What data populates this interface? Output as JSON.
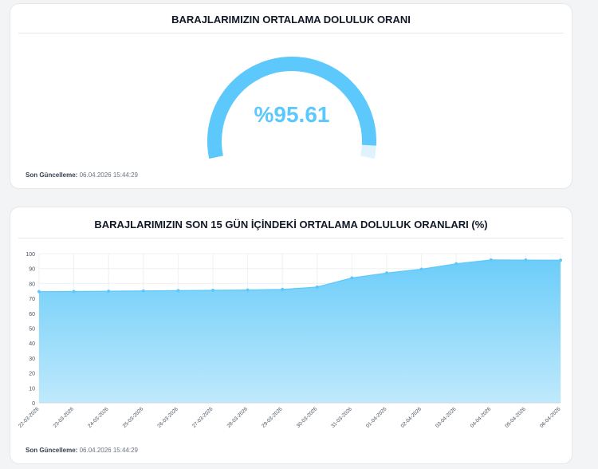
{
  "gauge_card": {
    "title": "BARAJLARIMIZIN ORTALAMA DOLULUK ORANI",
    "value_text": "%95.61",
    "value": 95.61,
    "updated_label": "Son Güncelleme:",
    "updated_value": "06.04.2026 15:44:29"
  },
  "trend_card": {
    "title": "BARAJLARIMIZIN SON 15 GÜN İÇİNDEKİ ORTALAMA DOLULUK ORANLARI (%)",
    "updated_label": "Son Güncelleme:",
    "updated_value": "06.04.2026 15:44:29"
  },
  "colors": {
    "accent": "#5cc8fb",
    "gauge_track": "#e0f2fe",
    "area_top": "#6ccdf9",
    "area_bottom": "#bfe9fc"
  },
  "chart_data": {
    "type": "area",
    "title": "BARAJLARIMIZIN SON 15 GÜN İÇİNDEKİ ORTALAMA DOLULUK ORANLARI (%)",
    "xlabel": "",
    "ylabel": "",
    "x": [
      "22-03-2026",
      "23-03-2026",
      "24-03-2026",
      "25-03-2026",
      "26-03-2026",
      "27-03-2026",
      "28-03-2026",
      "29-03-2026",
      "30-03-2026",
      "31-03-2026",
      "01-04-2026",
      "02-04-2026",
      "03-04-2026",
      "04-04-2026",
      "05-04-2026",
      "06-04-2026"
    ],
    "values": [
      74.5,
      74.6,
      74.8,
      75.0,
      75.2,
      75.4,
      75.6,
      76.0,
      77.6,
      83.7,
      87.0,
      89.6,
      93.2,
      95.8,
      95.7,
      95.6
    ],
    "ylim": [
      0,
      100
    ],
    "yticks": [
      0,
      10,
      20,
      30,
      40,
      50,
      60,
      70,
      80,
      90,
      100
    ],
    "grid": true,
    "legend": "none"
  }
}
